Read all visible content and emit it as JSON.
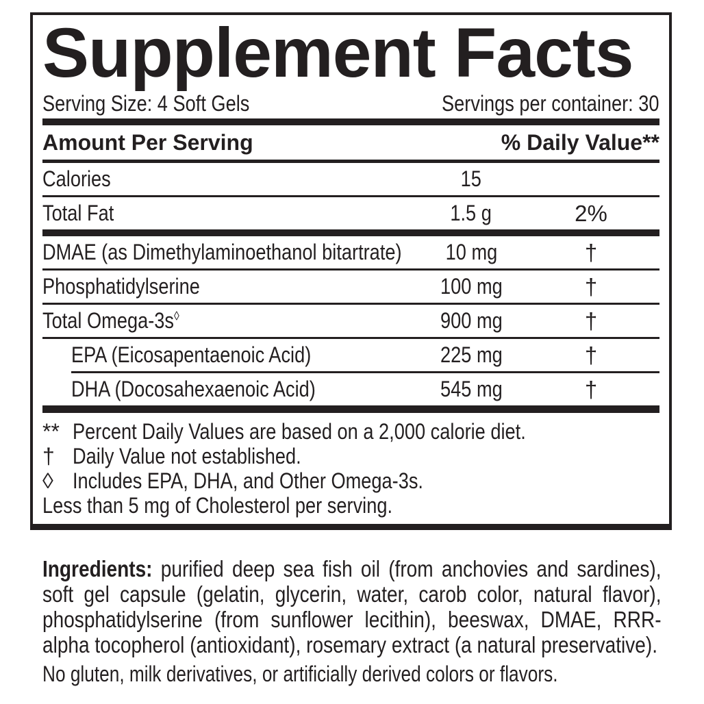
{
  "colors": {
    "text": "#231f20",
    "background": "#ffffff"
  },
  "supplement_facts": {
    "title": "Supplement Facts",
    "serving_size": "Serving Size: 4 Soft Gels",
    "servings_per_container": "Servings per container: 30",
    "columns": {
      "amount_header": "Amount Per Serving",
      "daily_value_header": "% Daily Value**"
    },
    "rows": [
      {
        "name": "Calories",
        "mark": "",
        "amount": "15",
        "daily_value": ""
      },
      {
        "name": "Total Fat",
        "mark": "",
        "amount": "1.5 g",
        "daily_value": "2%"
      },
      {
        "name": "DMAE (as Dimethylaminoethanol bitartrate)",
        "mark": "",
        "amount": "10 mg",
        "daily_value": "†"
      },
      {
        "name": "Phosphatidylserine",
        "mark": "",
        "amount": "100 mg",
        "daily_value": "†"
      },
      {
        "name": "Total Omega-3s",
        "mark": "◊",
        "amount": "900 mg",
        "daily_value": "†"
      },
      {
        "name": "EPA (Eicosapentaenoic Acid)",
        "mark": "",
        "amount": "225 mg",
        "daily_value": "†"
      },
      {
        "name": "DHA (Docosahexaenoic Acid)",
        "mark": "",
        "amount": "545 mg",
        "daily_value": "†"
      }
    ],
    "footnotes": [
      {
        "marker": "**",
        "text": "Percent Daily Values are based on a 2,000 calorie diet."
      },
      {
        "marker": "†",
        "text": "Daily Value not established."
      },
      {
        "marker": "◊",
        "text": "Includes EPA, DHA, and Other Omega-3s."
      },
      {
        "marker": "",
        "text": "Less than 5 mg of Cholesterol per serving."
      }
    ]
  },
  "ingredients": {
    "label": "Ingredients:",
    "text": "purified deep sea fish oil (from anchovies and sardines), soft gel capsule (gelatin, glycerin, water, carob color, natural flavor), phosphatidylserine (from sunflower lecithin), beeswax, DMAE, RRR-alpha tocopherol (antioxidant), rosemary extract (a natural preservative).",
    "allergen_statement": "No gluten, milk derivatives, or artificially derived colors or flavors."
  }
}
